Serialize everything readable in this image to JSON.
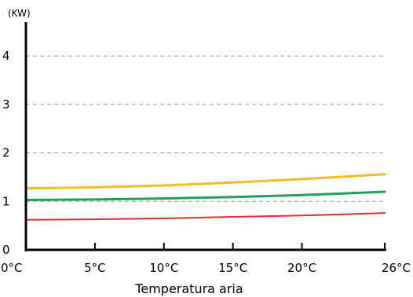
{
  "chart_data": {
    "type": "line",
    "title": "",
    "ylabel": "(KW)",
    "xlabel": "Temperatura aria",
    "x": [
      0,
      5,
      10,
      15,
      20,
      26
    ],
    "x_tick_labels": [
      "0°C",
      "5°C",
      "10°C",
      "15°C",
      "20°C",
      "26°C"
    ],
    "y_ticks": [
      0,
      1,
      2,
      3,
      4
    ],
    "y_tick_labels": [
      "0",
      "1",
      "2",
      "3",
      "4"
    ],
    "xlim": [
      0,
      26
    ],
    "ylim": [
      0,
      4.7
    ],
    "grid": "horizontal dashed",
    "legend": "none",
    "series": [
      {
        "color": "#f5bc2a",
        "values": [
          1.27,
          1.29,
          1.33,
          1.39,
          1.46,
          1.56
        ]
      },
      {
        "color": "#21a05a",
        "values": [
          1.03,
          1.04,
          1.06,
          1.09,
          1.13,
          1.2
        ]
      },
      {
        "color": "#e0302c",
        "values": [
          0.62,
          0.63,
          0.65,
          0.68,
          0.71,
          0.76
        ]
      }
    ]
  }
}
